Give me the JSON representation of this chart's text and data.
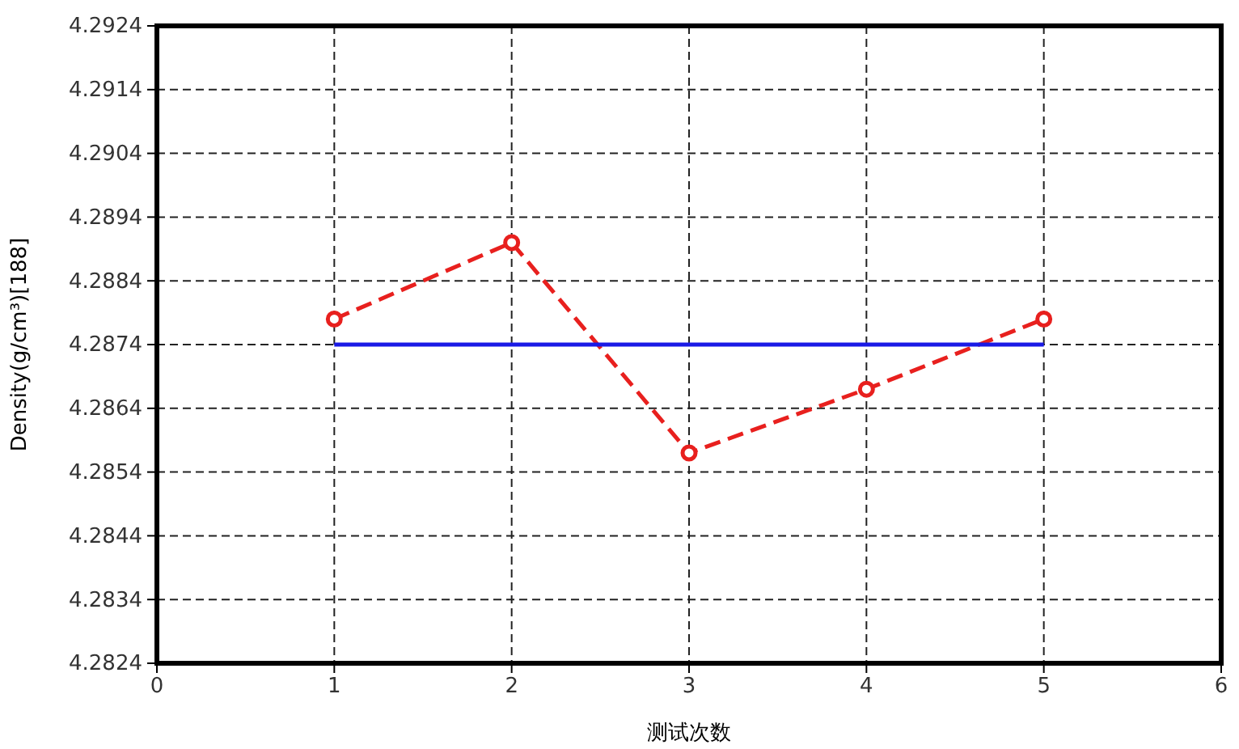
{
  "chart_data": {
    "type": "line",
    "xlabel": "测试次数",
    "ylabel": "Density(g/cm³)[188]",
    "x": [
      1,
      2,
      3,
      4,
      5
    ],
    "series": [
      {
        "color": "#e8201e",
        "values": [
          4.2878,
          4.289,
          4.2857,
          4.2867,
          4.2878
        ],
        "marker": "circle",
        "line_style": "dashed"
      },
      {
        "color": "#1a1ae6",
        "x": [
          1,
          5
        ],
        "values": [
          4.2874,
          4.2874
        ],
        "marker": "none",
        "line_style": "solid"
      }
    ],
    "xlim": [
      0,
      6
    ],
    "xticks": [
      0,
      1,
      2,
      3,
      4,
      5,
      6
    ],
    "ylim": [
      4.2824,
      4.2924
    ],
    "yticks": [
      4.2824,
      4.2834,
      4.2844,
      4.2854,
      4.2864,
      4.2874,
      4.2884,
      4.2894,
      4.2904,
      4.2914,
      4.2924
    ],
    "grid": true
  }
}
